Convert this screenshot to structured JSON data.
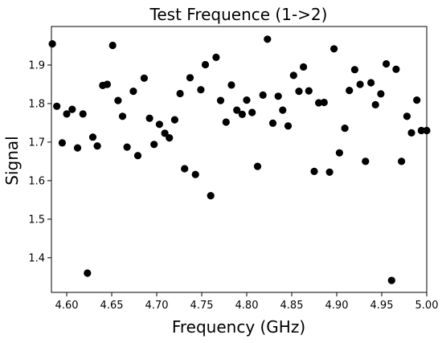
{
  "chart_data": {
    "type": "scatter",
    "title": "Test Frequence (1->2)",
    "xlabel": "Frequency (GHz)",
    "ylabel": "Signal",
    "xlim": [
      4.583,
      5.0
    ],
    "ylim": [
      1.31,
      2.0
    ],
    "xticks": [
      "4.60",
      "4.65",
      "4.70",
      "4.75",
      "4.80",
      "4.85",
      "4.90",
      "4.95",
      "5.00"
    ],
    "yticks": [
      "1.4",
      "1.5",
      "1.6",
      "1.7",
      "1.8",
      "1.9"
    ],
    "grid": false,
    "marker_color": "#000000",
    "series": [
      {
        "x": [
          4.584,
          4.589,
          4.595,
          4.6,
          4.606,
          4.612,
          4.618,
          4.623,
          4.629,
          4.634,
          4.64,
          4.645,
          4.651,
          4.657,
          4.662,
          4.667,
          4.674,
          4.679,
          4.686,
          4.692,
          4.697,
          4.703,
          4.709,
          4.714,
          4.72,
          4.726,
          4.731,
          4.737,
          4.743,
          4.749,
          4.754,
          4.76,
          4.766,
          4.771,
          4.777,
          4.783,
          4.789,
          4.795,
          4.8,
          4.806,
          4.812,
          4.818,
          4.823,
          4.829,
          4.835,
          4.84,
          4.846,
          4.852,
          4.858,
          4.863,
          4.869,
          4.875,
          4.88,
          4.886,
          4.892,
          4.897,
          4.903,
          4.909,
          4.914,
          4.92,
          4.926,
          4.932,
          4.938,
          4.943,
          4.949,
          4.955,
          4.961,
          4.966,
          4.972,
          4.978,
          4.983,
          4.989,
          4.994,
          5.0
        ],
        "y": [
          1.955,
          1.793,
          1.698,
          1.773,
          1.785,
          1.685,
          1.773,
          1.36,
          1.713,
          1.69,
          1.847,
          1.85,
          1.951,
          1.808,
          1.767,
          1.687,
          1.832,
          1.665,
          1.866,
          1.762,
          1.694,
          1.746,
          1.723,
          1.711,
          1.758,
          1.826,
          1.631,
          1.867,
          1.616,
          1.836,
          1.901,
          1.561,
          1.92,
          1.808,
          1.752,
          1.848,
          1.783,
          1.772,
          1.809,
          1.777,
          1.637,
          1.822,
          1.967,
          1.749,
          1.819,
          1.783,
          1.742,
          1.873,
          1.832,
          1.895,
          1.833,
          1.624,
          1.802,
          1.803,
          1.622,
          1.942,
          1.672,
          1.736,
          1.834,
          1.888,
          1.85,
          1.65,
          1.854,
          1.797,
          1.825,
          1.903,
          1.341,
          1.889,
          1.65,
          1.767,
          1.724,
          1.809,
          1.73,
          1.73
        ]
      }
    ]
  }
}
